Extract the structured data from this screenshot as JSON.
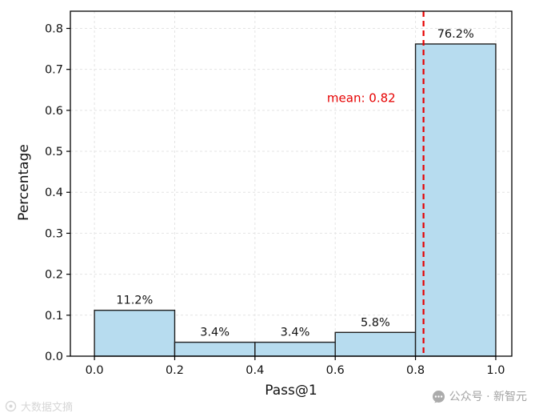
{
  "watermarks": {
    "left": {
      "text": "大数据文摘"
    },
    "right": {
      "text": "公众号 · 新智元"
    }
  },
  "chart_data": {
    "type": "bar",
    "title": "",
    "xlabel": "Pass@1",
    "ylabel": "Percentage",
    "bins": [
      [
        0.0,
        0.2
      ],
      [
        0.2,
        0.4
      ],
      [
        0.4,
        0.6
      ],
      [
        0.6,
        0.8
      ],
      [
        0.8,
        1.0
      ]
    ],
    "values": [
      0.112,
      0.034,
      0.034,
      0.058,
      0.762
    ],
    "bar_labels": [
      "11.2%",
      "3.4%",
      "3.4%",
      "5.8%",
      "76.2%"
    ],
    "mean": 0.82,
    "mean_label": "mean: 0.82",
    "mean_annotation": {
      "x": 0.665,
      "y": 0.62
    },
    "xticks": [
      0.0,
      0.2,
      0.4,
      0.6,
      0.8,
      1.0
    ],
    "yticks": [
      0.0,
      0.1,
      0.2,
      0.3,
      0.4,
      0.5,
      0.6,
      0.7,
      0.8
    ],
    "xlim": [
      -0.06,
      1.04
    ],
    "ylim": [
      0,
      0.842
    ],
    "grid": true,
    "legend": "none",
    "colors": {
      "bar_fill": "#b7dcef",
      "bar_edge": "#1f1f1f",
      "mean_line": "#e60000",
      "grid": "#e4e4e4",
      "axis": "#000000",
      "text": "#111111"
    }
  }
}
